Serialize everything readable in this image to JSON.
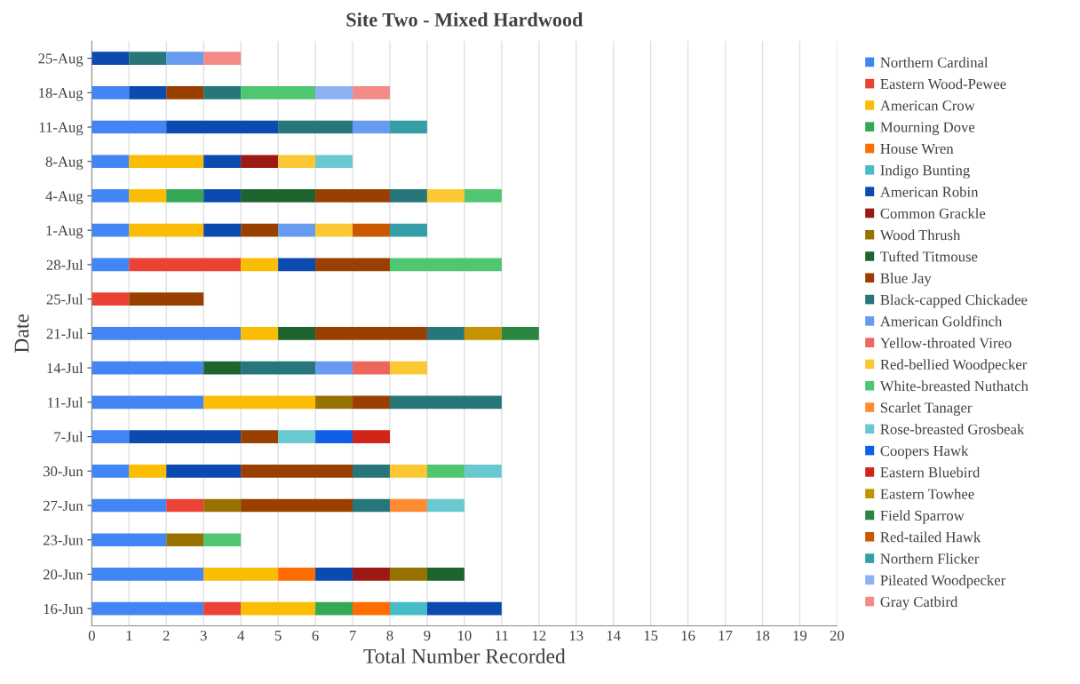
{
  "chart_data": {
    "type": "bar",
    "orientation": "horizontal",
    "stacked": true,
    "title": "Site Two - Mixed Hardwood",
    "xlabel": "Total Number Recorded",
    "ylabel": "Date",
    "categories": [
      "25-Aug",
      "18-Aug",
      "11-Aug",
      "8-Aug",
      "4-Aug",
      "1-Aug",
      "28-Jul",
      "25-Jul",
      "21-Jul",
      "14-Jul",
      "11-Jul",
      "7-Jul",
      "30-Jun",
      "27-Jun",
      "23-Jun",
      "20-Jun",
      "16-Jun"
    ],
    "xlim": [
      0,
      20
    ],
    "xticks": [
      0,
      1,
      2,
      3,
      4,
      5,
      6,
      7,
      8,
      9,
      10,
      11,
      12,
      13,
      14,
      15,
      16,
      17,
      18,
      19,
      20
    ],
    "grid": "x",
    "legend": "right",
    "series": [
      {
        "name": "Northern Cardinal",
        "color": "#4285f4",
        "values": [
          null,
          1,
          2,
          1,
          1,
          1,
          1,
          null,
          4,
          3,
          3,
          1,
          1,
          2,
          2,
          3,
          3
        ]
      },
      {
        "name": "Eastern Wood-Pewee",
        "color": "#ea4335",
        "values": [
          null,
          null,
          null,
          null,
          null,
          null,
          3,
          1,
          null,
          null,
          null,
          null,
          null,
          1,
          null,
          null,
          1
        ]
      },
      {
        "name": "American Crow",
        "color": "#fbbc04",
        "values": [
          null,
          null,
          null,
          2,
          1,
          2,
          1,
          null,
          1,
          null,
          3,
          null,
          1,
          null,
          null,
          2,
          2
        ]
      },
      {
        "name": "Mourning Dove",
        "color": "#34a853",
        "values": [
          null,
          null,
          null,
          null,
          1,
          null,
          null,
          null,
          null,
          null,
          null,
          null,
          null,
          null,
          null,
          null,
          1
        ]
      },
      {
        "name": "House Wren",
        "color": "#ff6d01",
        "values": [
          null,
          null,
          null,
          null,
          null,
          null,
          null,
          null,
          null,
          null,
          null,
          null,
          null,
          null,
          null,
          1,
          1
        ]
      },
      {
        "name": "Indigo Bunting",
        "color": "#46bdc6",
        "values": [
          null,
          null,
          null,
          null,
          null,
          null,
          null,
          null,
          null,
          null,
          null,
          null,
          null,
          null,
          null,
          null,
          1
        ]
      },
      {
        "name": "American Robin",
        "color": "#0b4aaf",
        "values": [
          1,
          1,
          3,
          1,
          1,
          1,
          1,
          null,
          null,
          null,
          null,
          3,
          2,
          null,
          null,
          1,
          2
        ]
      },
      {
        "name": "Common Grackle",
        "color": "#9c1a13",
        "values": [
          null,
          null,
          null,
          1,
          null,
          null,
          null,
          null,
          null,
          null,
          null,
          null,
          null,
          null,
          null,
          1,
          null
        ]
      },
      {
        "name": "Wood Thrush",
        "color": "#977200",
        "values": [
          null,
          null,
          null,
          null,
          null,
          null,
          null,
          null,
          null,
          null,
          1,
          null,
          null,
          1,
          1,
          1,
          null
        ]
      },
      {
        "name": "Tufted Titmouse",
        "color": "#1e642f",
        "values": [
          null,
          null,
          null,
          null,
          2,
          null,
          null,
          null,
          1,
          1,
          null,
          null,
          null,
          null,
          null,
          1,
          null
        ]
      },
      {
        "name": "Blue Jay",
        "color": "#994000",
        "values": [
          null,
          1,
          null,
          null,
          2,
          1,
          2,
          2,
          3,
          null,
          1,
          1,
          3,
          3,
          null,
          null,
          null
        ]
      },
      {
        "name": "Black-capped Chickadee",
        "color": "#27767a",
        "values": [
          1,
          1,
          2,
          null,
          1,
          null,
          null,
          null,
          1,
          2,
          3,
          null,
          1,
          1,
          null,
          null,
          null
        ]
      },
      {
        "name": "American Goldfinch",
        "color": "#679bf0",
        "values": [
          1,
          null,
          1,
          null,
          null,
          1,
          null,
          null,
          null,
          1,
          null,
          null,
          null,
          null,
          null,
          null,
          null
        ]
      },
      {
        "name": "Yellow-throated Vireo",
        "color": "#ed675d",
        "values": [
          null,
          null,
          null,
          null,
          null,
          null,
          null,
          null,
          null,
          1,
          null,
          null,
          null,
          null,
          null,
          null,
          null
        ]
      },
      {
        "name": "Red-bellied Woodpecker",
        "color": "#fbc834",
        "values": [
          null,
          null,
          null,
          1,
          1,
          1,
          null,
          null,
          null,
          1,
          null,
          null,
          1,
          null,
          null,
          null,
          null
        ]
      },
      {
        "name": "White-breasted Nuthatch",
        "color": "#4fc670",
        "values": [
          null,
          2,
          null,
          null,
          1,
          null,
          3,
          null,
          null,
          null,
          null,
          null,
          1,
          null,
          1,
          null,
          null
        ]
      },
      {
        "name": "Scarlet Tanager",
        "color": "#ff8a34",
        "values": [
          null,
          null,
          null,
          null,
          null,
          null,
          null,
          null,
          null,
          null,
          null,
          null,
          null,
          1,
          null,
          null,
          null
        ]
      },
      {
        "name": "Rose-breasted Grosbeak",
        "color": "#6ac9d0",
        "values": [
          null,
          null,
          null,
          1,
          null,
          null,
          null,
          null,
          null,
          null,
          null,
          1,
          1,
          1,
          null,
          null,
          null
        ]
      },
      {
        "name": "Coopers Hawk",
        "color": "#0f60e6",
        "values": [
          null,
          null,
          null,
          null,
          null,
          null,
          null,
          null,
          null,
          null,
          null,
          1,
          null,
          null,
          null,
          null,
          null
        ]
      },
      {
        "name": "Eastern Bluebird",
        "color": "#d02518",
        "values": [
          null,
          null,
          null,
          null,
          null,
          null,
          null,
          null,
          null,
          null,
          null,
          1,
          null,
          null,
          null,
          null,
          null
        ]
      },
      {
        "name": "Eastern Towhee",
        "color": "#c69300",
        "values": [
          null,
          null,
          null,
          null,
          null,
          null,
          null,
          null,
          1,
          null,
          null,
          null,
          null,
          null,
          null,
          null,
          null
        ]
      },
      {
        "name": "Field Sparrow",
        "color": "#2a8640",
        "values": [
          null,
          null,
          null,
          null,
          null,
          null,
          null,
          null,
          1,
          null,
          null,
          null,
          null,
          null,
          null,
          null,
          null
        ]
      },
      {
        "name": "Red-tailed Hawk",
        "color": "#cb5800",
        "values": [
          null,
          null,
          null,
          null,
          null,
          1,
          null,
          null,
          null,
          null,
          null,
          null,
          null,
          null,
          null,
          null,
          null
        ]
      },
      {
        "name": "Northern Flicker",
        "color": "#359ea6",
        "values": [
          null,
          null,
          1,
          null,
          null,
          1,
          null,
          null,
          null,
          null,
          null,
          null,
          null,
          null,
          null,
          null,
          null
        ]
      },
      {
        "name": "Pileated Woodpecker",
        "color": "#8eb1f4",
        "values": [
          null,
          1,
          null,
          null,
          null,
          null,
          null,
          null,
          null,
          null,
          null,
          null,
          null,
          null,
          null,
          null,
          null
        ]
      },
      {
        "name": "Gray Catbird",
        "color": "#f28b85",
        "values": [
          1,
          1,
          null,
          null,
          null,
          null,
          null,
          null,
          null,
          null,
          null,
          null,
          null,
          null,
          null,
          null,
          null
        ]
      }
    ]
  }
}
